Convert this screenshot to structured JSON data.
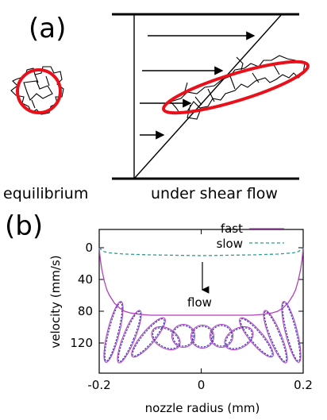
{
  "panel_a": {
    "label": "(a)",
    "left_caption": "equilibrium",
    "right_caption": "under shear flow",
    "colors": {
      "highlight": "#e8111b",
      "line": "#000000"
    }
  },
  "panel_b": {
    "label": "(b)",
    "flow_label": "flow",
    "colors": {
      "fast": "#b23fbf",
      "slow": "#2a9d8f",
      "ellipse": "#3b3bb0"
    }
  },
  "chart_data": {
    "type": "line",
    "xlabel": "nozzle radius (mm)",
    "ylabel": "velocity (mm/s)",
    "xlim": [
      -0.2,
      0.2
    ],
    "ylim": [
      0,
      150
    ],
    "y_inverted": true,
    "x_ticks": [
      "-0.2",
      "0",
      "0.2"
    ],
    "y_ticks": [
      "0",
      "40",
      "80",
      "120"
    ],
    "legend_position": "top-right",
    "series": [
      {
        "name": "fast",
        "style": "solid",
        "color": "#b23fbf",
        "x": [
          -0.2,
          -0.198,
          -0.195,
          -0.19,
          -0.185,
          -0.18,
          -0.17,
          -0.16,
          -0.15,
          -0.14,
          -0.12,
          -0.1,
          -0.05,
          0,
          0.05,
          0.1,
          0.12,
          0.14,
          0.15,
          0.16,
          0.17,
          0.18,
          0.185,
          0.19,
          0.195,
          0.198,
          0.2
        ],
        "y": [
          0,
          14,
          27,
          42,
          53,
          60,
          70,
          76,
          80,
          82,
          84,
          85,
          85,
          85,
          85,
          85,
          84,
          82,
          80,
          76,
          70,
          60,
          53,
          42,
          27,
          14,
          0
        ]
      },
      {
        "name": "slow",
        "style": "dashed",
        "color": "#2a9d8f",
        "x": [
          -0.2,
          -0.195,
          -0.19,
          -0.18,
          -0.15,
          -0.1,
          -0.05,
          0,
          0.05,
          0.1,
          0.15,
          0.18,
          0.19,
          0.195,
          0.2
        ],
        "y": [
          0,
          3,
          5,
          6.5,
          8,
          9,
          9.5,
          10,
          9.5,
          9,
          8,
          6.5,
          5,
          3,
          0
        ]
      }
    ]
  }
}
